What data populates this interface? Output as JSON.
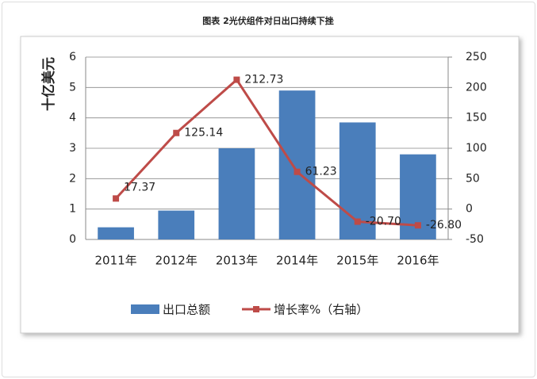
{
  "chart_data": {
    "type": "bar-line",
    "title": "图表 2光伏组件对日出口持续下挫",
    "ylabel": "十亿美元",
    "categories": [
      "2011年",
      "2012年",
      "2013年",
      "2014年",
      "2015年",
      "2016年"
    ],
    "series": [
      {
        "name": "出口总额",
        "type": "bar",
        "color": "#4a7ebb",
        "values": [
          0.4,
          0.95,
          3.0,
          4.9,
          3.85,
          2.8
        ]
      },
      {
        "name": "增长率%（右轴）",
        "type": "line",
        "axis": "y2",
        "color": "#be4b48",
        "values": [
          17.37,
          125.14,
          212.73,
          61.23,
          -20.7,
          -26.8
        ],
        "value_labels": [
          "17.37",
          "125.14",
          "212.73",
          "61.23",
          "-20.70",
          "-26.80"
        ]
      }
    ],
    "ylim": [
      0,
      6
    ],
    "yticks": [
      0,
      1,
      2,
      3,
      4,
      5,
      6
    ],
    "y2lim": [
      -50,
      250
    ],
    "y2ticks": [
      -50,
      0,
      50,
      100,
      150,
      200,
      250
    ],
    "grid": true
  }
}
